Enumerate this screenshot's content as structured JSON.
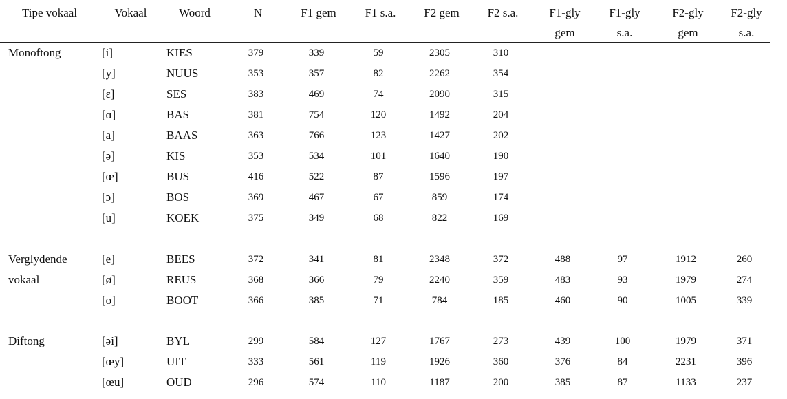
{
  "header": [
    [
      "Tipe vokaal"
    ],
    [
      "Vokaal"
    ],
    [
      "Woord"
    ],
    [
      "N"
    ],
    [
      "F1 gem"
    ],
    [
      "F1 s.a."
    ],
    [
      "F2 gem"
    ],
    [
      "F2 s.a."
    ],
    [
      "F1-gly",
      "gem"
    ],
    [
      "F1-gly",
      "s.a."
    ],
    [
      "F2-gly",
      "gem"
    ],
    [
      "F2-gly",
      "s.a."
    ]
  ],
  "groups": [
    {
      "label": [
        "Monoftong"
      ],
      "rows": [
        [
          "[i]",
          "KIES",
          379,
          339,
          59,
          2305,
          310
        ],
        [
          "[y]",
          "NUUS",
          353,
          357,
          82,
          2262,
          354
        ],
        [
          "[ɛ]",
          "SES",
          383,
          469,
          74,
          2090,
          315
        ],
        [
          "[ɑ]",
          "BAS",
          381,
          754,
          120,
          1492,
          204
        ],
        [
          "[a]",
          "BAAS",
          363,
          766,
          123,
          1427,
          202
        ],
        [
          "[ə]",
          "KIS",
          353,
          534,
          101,
          1640,
          190
        ],
        [
          "[œ]",
          "BUS",
          416,
          522,
          87,
          1596,
          197
        ],
        [
          "[ɔ]",
          "BOS",
          369,
          467,
          67,
          859,
          174
        ],
        [
          "[u]",
          "KOEK",
          375,
          349,
          68,
          822,
          169
        ]
      ]
    },
    {
      "label": [
        "Verglydende",
        "vokaal"
      ],
      "rows": [
        [
          "[e]",
          "BEES",
          372,
          341,
          81,
          2348,
          372,
          488,
          97,
          1912,
          260
        ],
        [
          "[ø]",
          "REUS",
          368,
          366,
          79,
          2240,
          359,
          483,
          93,
          1979,
          274
        ],
        [
          "[o]",
          "BOOT",
          366,
          385,
          71,
          784,
          185,
          460,
          90,
          1005,
          339
        ]
      ]
    },
    {
      "label": [
        "Diftong"
      ],
      "rows": [
        [
          "[əi]",
          "BYL",
          299,
          584,
          127,
          1767,
          273,
          439,
          100,
          1979,
          371
        ],
        [
          "[œy]",
          "UIT",
          333,
          561,
          119,
          1926,
          360,
          376,
          84,
          2231,
          396
        ],
        [
          "[œu]",
          "OUD",
          296,
          574,
          110,
          1187,
          200,
          385,
          87,
          1133,
          237
        ]
      ]
    }
  ]
}
